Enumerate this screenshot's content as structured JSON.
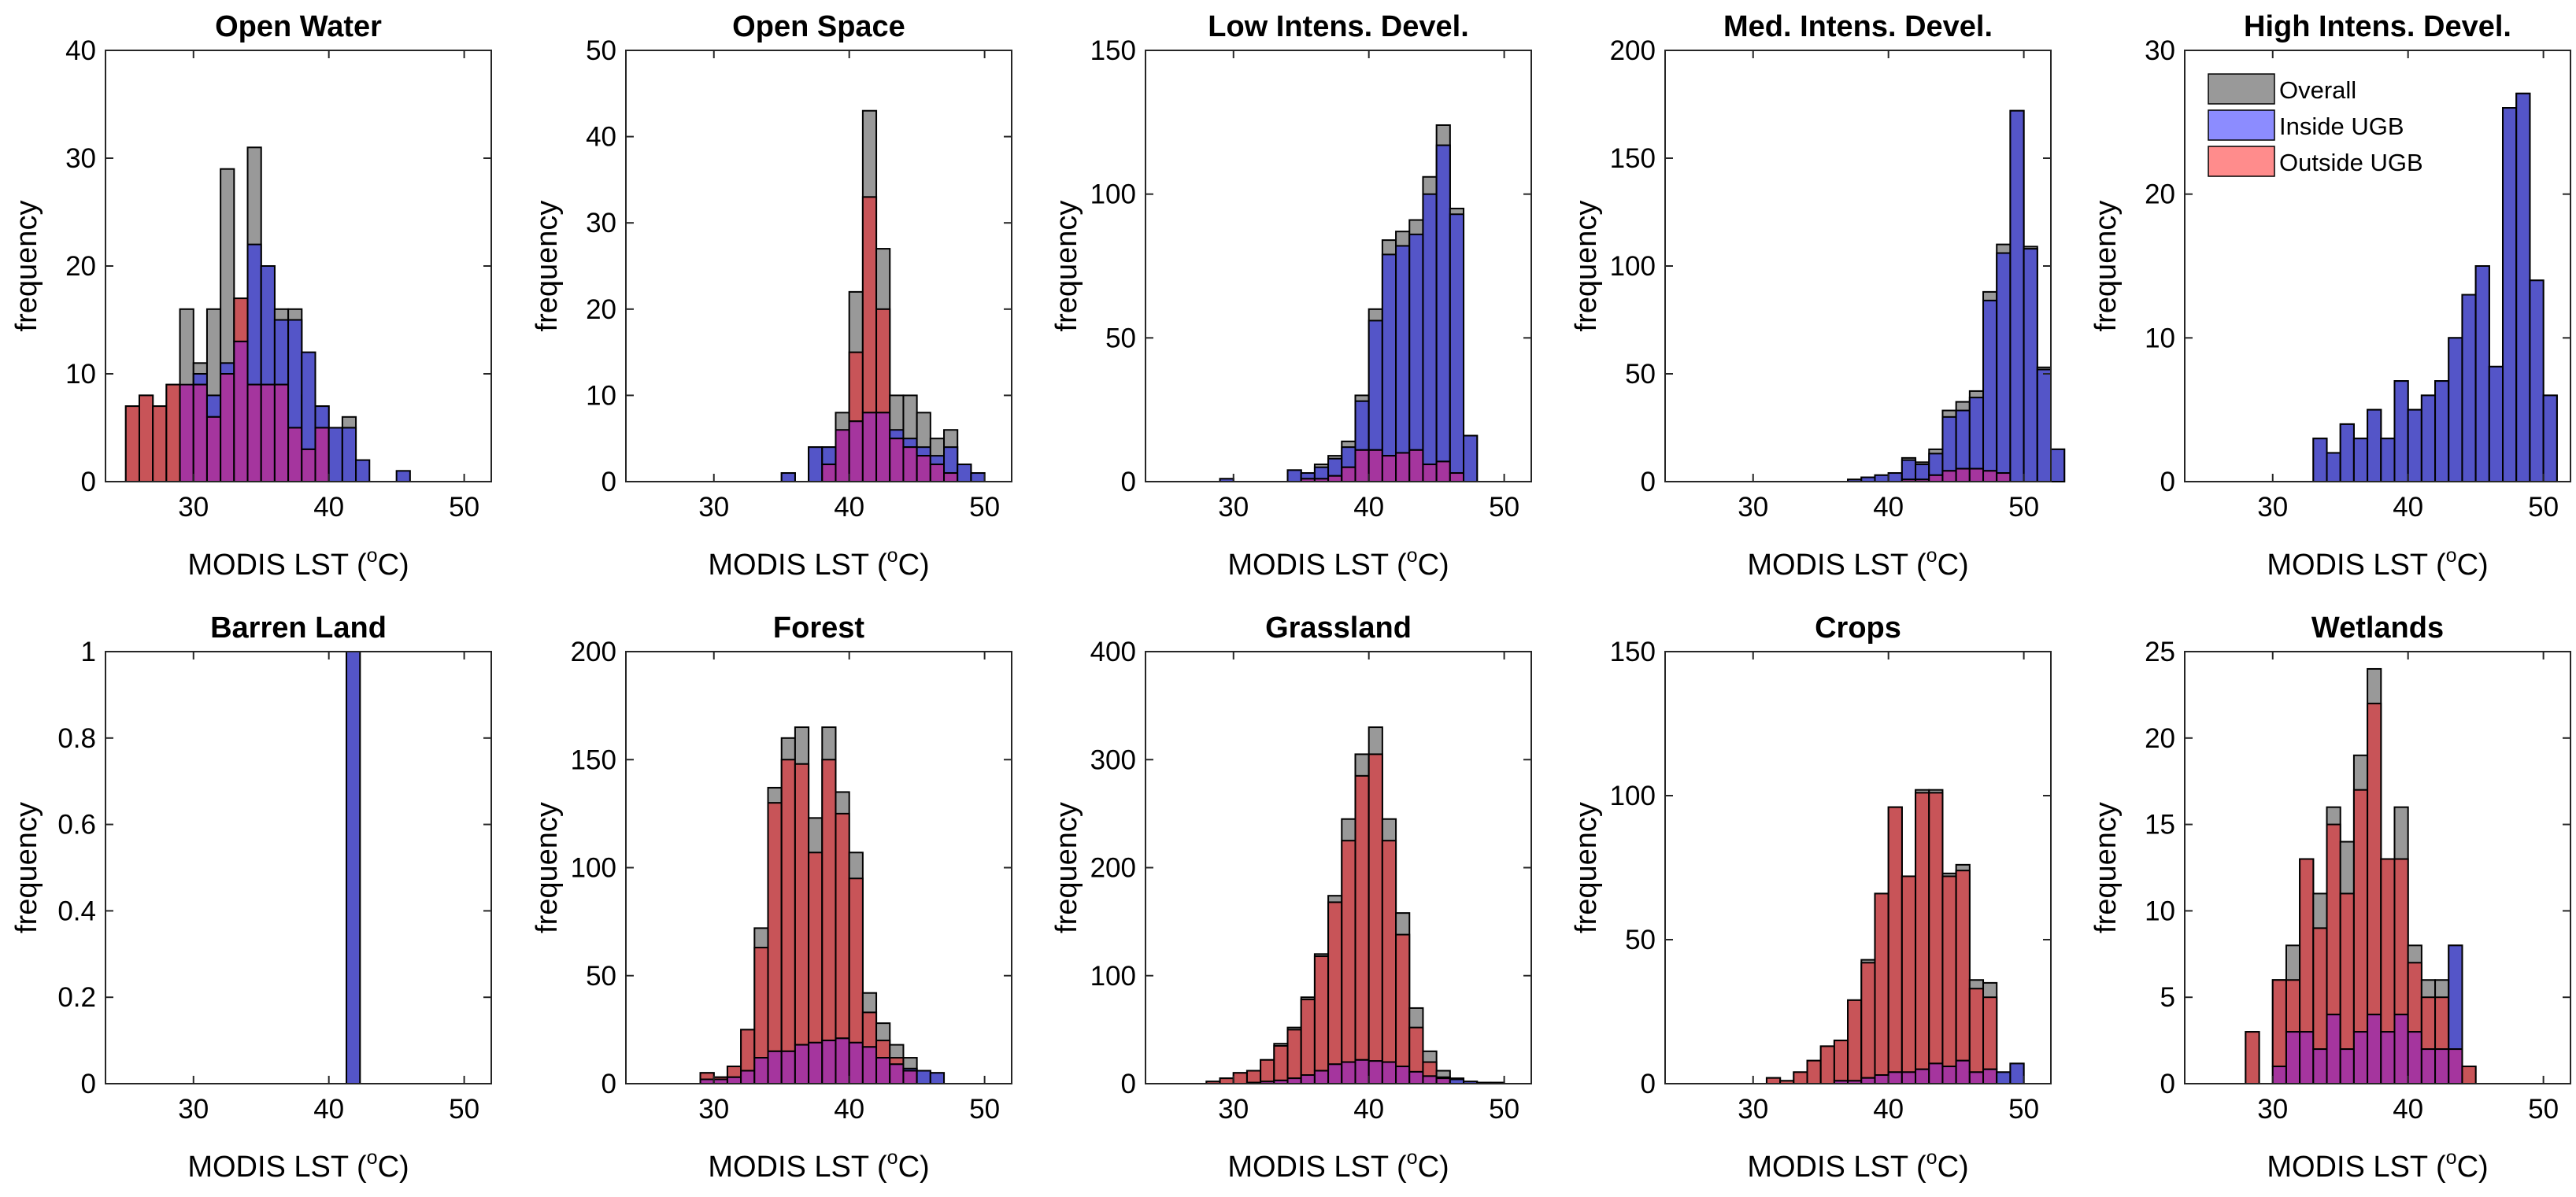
{
  "figure": {
    "series_names": [
      "Overall",
      "Inside UGB",
      "Outside UGB"
    ],
    "series_colors": {
      "Overall": "#999999",
      "Inside UGB": "#8c8cff",
      "Outside UGB": "#ff8c8c",
      "Overlap": "#a5359e",
      "Inside shown": "#5455c8",
      "Outside shown": "#c85458"
    },
    "legend_position": "top-left of the High Intens. Devel. panel"
  },
  "chart_data": [
    {
      "type": "bar",
      "title": "Open Water",
      "xlabel_pre": "MODIS LST (",
      "xlabel_sup": "o",
      "xlabel_post": "C)",
      "ylabel": "frequency",
      "xlim": [
        23.5,
        52
      ],
      "ylim": [
        0,
        40
      ],
      "xticks": [
        30,
        40,
        50
      ],
      "yticks": [
        0,
        10,
        20,
        30,
        40
      ],
      "bin_width": 1,
      "bin_start": 25,
      "overall": [
        7,
        8,
        7,
        9,
        16,
        11,
        16,
        29,
        17,
        31,
        20,
        16,
        16,
        8,
        7,
        5,
        6,
        0,
        0,
        0,
        0,
        0,
        0
      ],
      "inside": [
        0,
        0,
        0,
        0,
        9,
        10,
        8,
        11,
        13,
        22,
        20,
        15,
        15,
        12,
        7,
        5,
        5,
        2,
        0,
        0,
        1,
        0,
        0
      ],
      "outside": [
        7,
        8,
        7,
        9,
        9,
        9,
        6,
        10,
        17,
        9,
        9,
        9,
        5,
        3,
        5,
        0,
        0,
        0,
        0,
        0,
        0,
        0,
        0
      ]
    },
    {
      "type": "bar",
      "title": "Open Space",
      "xlabel_pre": "MODIS LST (",
      "xlabel_sup": "o",
      "xlabel_post": "C)",
      "ylabel": "frequency",
      "xlim": [
        23.5,
        52
      ],
      "ylim": [
        0,
        50
      ],
      "xticks": [
        30,
        40,
        50
      ],
      "yticks": [
        0,
        10,
        20,
        30,
        40,
        50
      ],
      "bin_width": 1,
      "bin_start": 35,
      "overall": [
        1,
        0,
        4,
        4,
        8,
        22,
        43,
        27,
        10,
        10,
        8,
        5,
        6,
        2,
        1
      ],
      "inside": [
        1,
        0,
        4,
        4,
        6,
        7,
        8,
        8,
        6,
        5,
        4,
        3,
        4,
        2,
        1
      ],
      "outside": [
        0,
        0,
        0,
        2,
        6,
        15,
        33,
        20,
        5,
        4,
        3,
        2,
        1,
        0,
        0
      ]
    },
    {
      "type": "bar",
      "title": "Low Intens. Devel.",
      "xlabel_pre": "MODIS LST (",
      "xlabel_sup": "o",
      "xlabel_post": "C)",
      "ylabel": "frequency",
      "xlim": [
        23.5,
        52
      ],
      "ylim": [
        0,
        150
      ],
      "xticks": [
        30,
        40,
        50
      ],
      "yticks": [
        0,
        50,
        100,
        150
      ],
      "bin_width": 1,
      "bin_start": 29,
      "overall": [
        1,
        0,
        0,
        0,
        0,
        4,
        3,
        6,
        9,
        14,
        30,
        60,
        84,
        87,
        91,
        106,
        124,
        95,
        16,
        0
      ],
      "inside": [
        1,
        0,
        0,
        0,
        0,
        4,
        3,
        5,
        8,
        12,
        28,
        56,
        79,
        82,
        86,
        100,
        117,
        93,
        16,
        0
      ],
      "outside": [
        0,
        0,
        0,
        0,
        0,
        0,
        1,
        1,
        2,
        5,
        11,
        11,
        9,
        10,
        11,
        6,
        7,
        3,
        0,
        0
      ]
    },
    {
      "type": "bar",
      "title": "Med. Intens. Devel.",
      "xlabel_pre": "MODIS LST (",
      "xlabel_sup": "o",
      "xlabel_post": "C)",
      "ylabel": "frequency",
      "xlim": [
        23.5,
        52
      ],
      "ylim": [
        0,
        200
      ],
      "xticks": [
        30,
        40,
        50
      ],
      "yticks": [
        0,
        50,
        100,
        150,
        200
      ],
      "bin_width": 1,
      "bin_start": 37,
      "overall": [
        1,
        2,
        3,
        4,
        11,
        9,
        15,
        33,
        37,
        42,
        88,
        110,
        172,
        109,
        53,
        15
      ],
      "inside": [
        1,
        2,
        3,
        4,
        10,
        8,
        13,
        30,
        33,
        39,
        84,
        106,
        172,
        108,
        52,
        15
      ],
      "outside": [
        0,
        0,
        0,
        0,
        1,
        1,
        3,
        5,
        6,
        6,
        5,
        4,
        0,
        0,
        0,
        0
      ]
    },
    {
      "type": "bar",
      "title": "High Intens. Devel.",
      "xlabel_pre": "MODIS LST (",
      "xlabel_sup": "o",
      "xlabel_post": "C)",
      "ylabel": "frequency",
      "xlim": [
        23.5,
        52
      ],
      "ylim": [
        0,
        30
      ],
      "xticks": [
        30,
        40,
        50
      ],
      "yticks": [
        0,
        10,
        20,
        30
      ],
      "bin_width": 1,
      "bin_start": 33,
      "overall": [
        3,
        2,
        4,
        3,
        5,
        3,
        7,
        5,
        6,
        7,
        10,
        13,
        15,
        8,
        26,
        27,
        14,
        6
      ],
      "inside": [
        3,
        2,
        4,
        3,
        5,
        3,
        7,
        5,
        6,
        7,
        10,
        13,
        15,
        8,
        26,
        27,
        14,
        6
      ],
      "outside": [
        0,
        0,
        0,
        0,
        0,
        0,
        0,
        0,
        0,
        0,
        0,
        0,
        0,
        0,
        0,
        0,
        0,
        0
      ]
    },
    {
      "type": "bar",
      "title": "Barren Land",
      "xlabel_pre": "MODIS LST (",
      "xlabel_sup": "o",
      "xlabel_post": "C)",
      "ylabel": "frequency",
      "xlim": [
        23.5,
        52
      ],
      "ylim": [
        0,
        1
      ],
      "xticks": [
        30,
        40,
        50
      ],
      "yticks": [
        0,
        0.2,
        0.4,
        0.6,
        0.8,
        1
      ],
      "bin_width": 1,
      "bin_start": 41.3,
      "overall": [
        1
      ],
      "inside": [
        1
      ],
      "outside": [
        0
      ]
    },
    {
      "type": "bar",
      "title": "Forest",
      "xlabel_pre": "MODIS LST (",
      "xlabel_sup": "o",
      "xlabel_post": "C)",
      "ylabel": "frequency",
      "xlim": [
        23.5,
        52
      ],
      "ylim": [
        0,
        200
      ],
      "xticks": [
        30,
        40,
        50
      ],
      "yticks": [
        0,
        50,
        100,
        150,
        200
      ],
      "bin_width": 1,
      "bin_start": 29,
      "overall": [
        5,
        3,
        8,
        25,
        72,
        137,
        160,
        165,
        123,
        165,
        135,
        107,
        42,
        28,
        18,
        12,
        6,
        5
      ],
      "inside": [
        2,
        2,
        3,
        6,
        12,
        15,
        15,
        18,
        19,
        20,
        21,
        19,
        17,
        12,
        9,
        7,
        6,
        5
      ],
      "outside": [
        5,
        3,
        8,
        25,
        63,
        130,
        150,
        148,
        107,
        150,
        125,
        95,
        33,
        20,
        12,
        6,
        0,
        0
      ]
    },
    {
      "type": "bar",
      "title": "Grassland",
      "xlabel_pre": "MODIS LST (",
      "xlabel_sup": "o",
      "xlabel_post": "C)",
      "ylabel": "frequency",
      "xlim": [
        23.5,
        52
      ],
      "ylim": [
        0,
        400
      ],
      "xticks": [
        30,
        40,
        50
      ],
      "yticks": [
        0,
        100,
        200,
        300,
        400
      ],
      "bin_width": 1,
      "bin_start": 28,
      "overall": [
        2,
        5,
        10,
        12,
        22,
        37,
        52,
        80,
        120,
        174,
        245,
        305,
        330,
        245,
        158,
        70,
        30,
        12,
        5,
        2,
        1,
        1
      ],
      "inside": [
        0,
        0,
        0,
        1,
        2,
        3,
        5,
        8,
        12,
        18,
        20,
        22,
        21,
        20,
        16,
        11,
        7,
        5,
        4,
        2,
        1,
        1
      ],
      "outside": [
        2,
        5,
        10,
        12,
        22,
        35,
        50,
        78,
        118,
        168,
        225,
        285,
        305,
        225,
        138,
        52,
        20,
        6,
        0,
        0,
        0,
        0
      ]
    },
    {
      "type": "bar",
      "title": "Crops",
      "xlabel_pre": "MODIS LST (",
      "xlabel_sup": "o",
      "xlabel_post": "C)",
      "ylabel": "frequency",
      "xlim": [
        23.5,
        52
      ],
      "ylim": [
        0,
        150
      ],
      "xticks": [
        30,
        40,
        50
      ],
      "yticks": [
        0,
        50,
        100,
        150
      ],
      "bin_width": 1,
      "bin_start": 31,
      "overall": [
        2,
        1,
        4,
        8,
        13,
        15,
        29,
        43,
        66,
        96,
        72,
        102,
        102,
        73,
        76,
        36,
        35,
        4,
        7
      ],
      "inside": [
        0,
        0,
        0,
        0,
        0,
        1,
        1,
        2,
        3,
        4,
        4,
        5,
        7,
        6,
        8,
        4,
        5,
        4,
        7
      ],
      "outside": [
        2,
        1,
        4,
        8,
        13,
        15,
        29,
        42,
        66,
        96,
        72,
        101,
        101,
        72,
        74,
        33,
        30,
        0,
        0
      ]
    },
    {
      "type": "bar",
      "title": "Wetlands",
      "xlabel_pre": "MODIS LST (",
      "xlabel_sup": "o",
      "xlabel_post": "C)",
      "ylabel": "frequency",
      "xlim": [
        23.5,
        52
      ],
      "ylim": [
        0,
        25
      ],
      "xticks": [
        30,
        40,
        50
      ],
      "yticks": [
        0,
        5,
        10,
        15,
        20,
        25
      ],
      "bin_width": 1,
      "bin_start": 28,
      "overall": [
        3,
        0,
        6,
        8,
        13,
        11,
        16,
        14,
        19,
        24,
        13,
        16,
        8,
        6,
        6,
        8,
        1
      ],
      "inside": [
        0,
        0,
        1,
        3,
        3,
        2,
        4,
        2,
        3,
        4,
        3,
        4,
        3,
        2,
        2,
        8,
        0
      ],
      "outside": [
        3,
        0,
        6,
        6,
        13,
        9,
        15,
        11,
        17,
        22,
        13,
        13,
        7,
        5,
        5,
        2,
        1
      ]
    }
  ]
}
